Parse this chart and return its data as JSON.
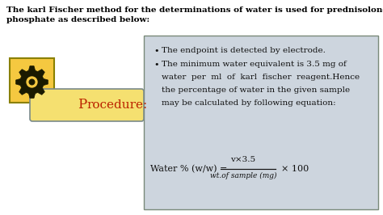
{
  "title_text": "The karl Fischer method for the determinations of water is used for prednisolone sodium\nphosphate as described below:",
  "title_fontsize": 7.5,
  "bg_color": "#ffffff",
  "box_bg_color": "#cdd5de",
  "box_border_color": "#7a8a7a",
  "yellow_box_color": "#f5c840",
  "yellow_box_border_color": "#8a8000",
  "proc_box_bg": "#f5e070",
  "proc_box_border": "#7a8a8a",
  "procedure_text_P": "P",
  "procedure_text_rest": "rocedure:",
  "procedure_color": "#bb2200",
  "procedure_fontsize": 11,
  "bullet1": "The endpoint is detected by electrode.",
  "bullet2_line1": "The minimum water equivalent is 3.5 mg of",
  "bullet2_line2": "water  per  ml  of  karl  fischer  reagent.Hence",
  "bullet2_line3": "the percentage of water in the given sample",
  "bullet2_line4": "may be calculated by following equation:",
  "bullet_fontsize": 7.5,
  "formula_label": "Water % (w/w) = ",
  "formula_numerator": "v×3.5",
  "formula_denominator": "wt.of sample (mg)",
  "formula_times100": "× 100",
  "formula_fontsize": 8.0,
  "gear_color": "#1a1a00",
  "gear_fill": "#f5c840"
}
